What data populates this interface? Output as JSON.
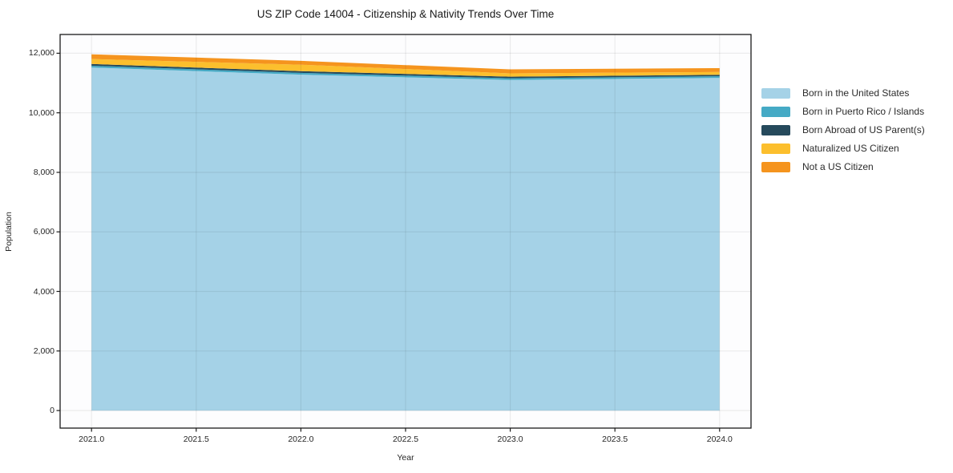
{
  "chart": {
    "title": "US ZIP Code 14004 - Citizenship & Nativity Trends Over Time",
    "xlabel": "Year",
    "ylabel": "Population"
  },
  "chart_data": {
    "type": "area",
    "stacked": true,
    "title": "US ZIP Code 14004 - Citizenship & Nativity Trends Over Time",
    "xlabel": "Year",
    "ylabel": "Population",
    "x": [
      2021,
      2022,
      2023,
      2024
    ],
    "series": [
      {
        "name": "Born in the United States",
        "color": "#A5D2E7",
        "values": [
          11520,
          11280,
          11100,
          11170
        ]
      },
      {
        "name": "Born in Puerto Rico / Islands",
        "color": "#45AAC5",
        "values": [
          60,
          60,
          60,
          60
        ]
      },
      {
        "name": "Born Abroad of US Parent(s)",
        "color": "#264A5C",
        "values": [
          60,
          60,
          55,
          45
        ]
      },
      {
        "name": "Naturalized US Citizen",
        "color": "#FCBF2D",
        "values": [
          165,
          215,
          110,
          95
        ]
      },
      {
        "name": "Not a US Citizen",
        "color": "#F5941E",
        "values": [
          160,
          130,
          135,
          130
        ]
      }
    ],
    "totals": [
      11965,
      11745,
      11460,
      11500
    ],
    "xlim": [
      2020.85,
      2024.15
    ],
    "ylim": [
      -590,
      12630
    ],
    "xticks": {
      "values": [
        2021,
        2021.5,
        2022,
        2022.5,
        2023,
        2023.5,
        2024
      ],
      "labels": [
        "2021.0",
        "2021.5",
        "2022.0",
        "2022.5",
        "2023.0",
        "2023.5",
        "2024.0"
      ]
    },
    "yticks": {
      "values": [
        0,
        2000,
        4000,
        6000,
        8000,
        10000,
        12000
      ],
      "labels": [
        "0",
        "2,000",
        "4,000",
        "6,000",
        "8,000",
        "10,000",
        "12,000"
      ]
    },
    "grid": true,
    "legend_position": "right-outside",
    "frame_color": "#1a1a1a",
    "grid_color": "rgba(0,0,0,0.07)"
  }
}
